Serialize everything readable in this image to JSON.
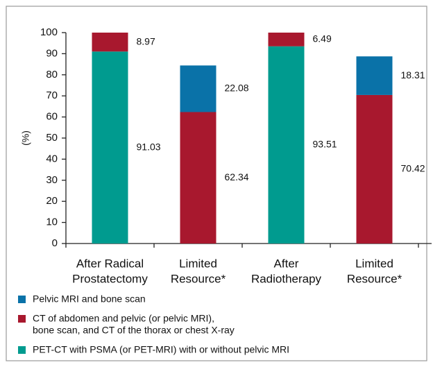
{
  "chart_data": {
    "type": "stacked_bar",
    "y_label": "(%)",
    "categories": [
      [
        "After Radical",
        "Prostatectomy"
      ],
      [
        "Limited",
        "Resource*"
      ],
      [
        "After",
        "Radiotherapy"
      ],
      [
        "Limited",
        "Resource*"
      ]
    ],
    "series": [
      {
        "name": [
          "PET-CT with PSMA (or PET-MRI) with or without pelvic MRI"
        ],
        "color": "#009b8f",
        "values": [
          91.03,
          null,
          93.51,
          null
        ]
      },
      {
        "name": [
          "CT of abdomen and pelvic (or pelvic MRI),",
          "bone scan, and CT of the thorax or chest X-ray"
        ],
        "color": "#a8182e",
        "values": [
          8.97,
          62.34,
          6.49,
          70.42
        ]
      },
      {
        "name": [
          "Pelvic MRI and bone scan"
        ],
        "color": "#0a72a8",
        "values": [
          null,
          22.08,
          null,
          18.31
        ]
      }
    ],
    "ylim": [
      0,
      100
    ],
    "yticks": [
      0,
      10,
      20,
      30,
      40,
      50,
      60,
      70,
      80,
      90,
      100
    ],
    "grid": false
  }
}
